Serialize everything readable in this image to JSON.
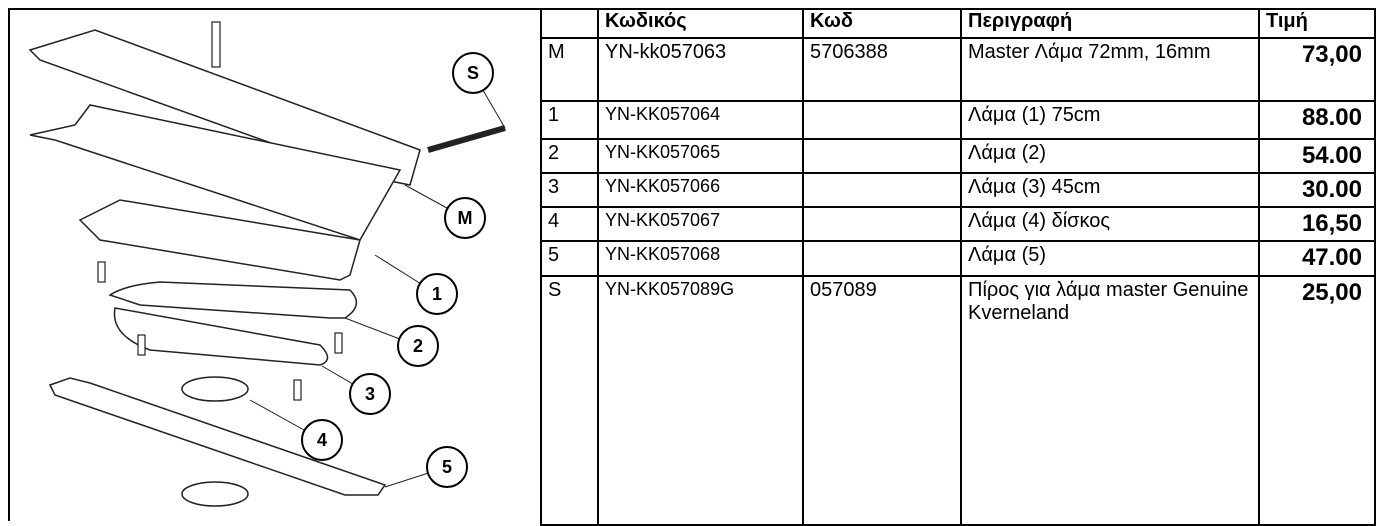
{
  "diagram": {
    "callouts": [
      "S",
      "M",
      "1",
      "2",
      "3",
      "4",
      "5"
    ]
  },
  "table": {
    "header": [
      "Κωδικός",
      "Κωδ",
      "Περιγραφή",
      "Τιμή"
    ],
    "rows": [
      {
        "id": "M",
        "code": "YN-kk057063",
        "code2": "5706388",
        "desc": "Master Λάμα 72mm, 16mm",
        "price": "73,00"
      },
      {
        "id": "1",
        "code": "YN-KK057064",
        "desc": "Λάμα (1) 75cm",
        "price": "88.00"
      },
      {
        "id": "2",
        "code": "YN-KK057065",
        "desc": "Λάμα (2)",
        "price": "54.00"
      },
      {
        "id": "3",
        "code": "YN-KK057066",
        "desc": "Λάμα (3) 45cm",
        "price": "30.00"
      },
      {
        "id": "4",
        "code": "YN-KK057067",
        "desc": "Λάμα (4) δίσκος",
        "price": "16,50"
      },
      {
        "id": "5",
        "code": "YN-KK057068",
        "desc": "Λάμα (5)",
        "price": "47.00"
      },
      {
        "id": "S",
        "code": "YN-KK057089G",
        "code2": "057089",
        "desc": "Πίρος για λάμα master Genuine Kverneland",
        "price": "25,00"
      }
    ]
  }
}
